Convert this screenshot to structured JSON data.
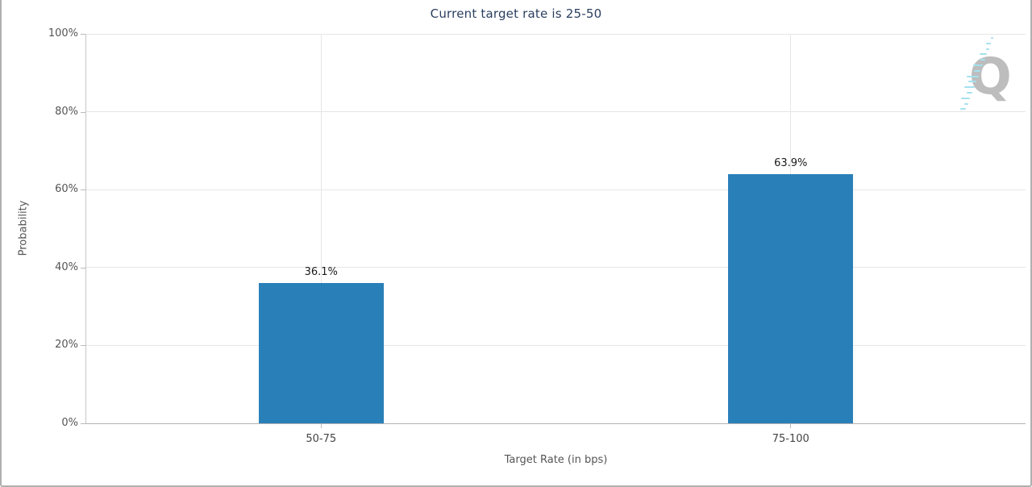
{
  "chart": {
    "title": "Current target rate is 25-50",
    "xlabel": "Target Rate (in bps)",
    "ylabel": "Probability"
  },
  "chart_data": {
    "type": "bar",
    "title": "Current target rate is 25-50",
    "categories": [
      "50-75",
      "75-100"
    ],
    "values": [
      36.1,
      63.9
    ],
    "value_labels": [
      "36.1%",
      "63.9%"
    ],
    "xlabel": "Target Rate (in bps)",
    "ylabel": "Probability",
    "ylim": [
      0,
      100
    ],
    "yticks": [
      0,
      20,
      40,
      60,
      80,
      100
    ],
    "ytick_labels": [
      "0%",
      "20%",
      "40%",
      "60%",
      "80%",
      "100%"
    ],
    "grid": true,
    "legend": "none",
    "bar_color": "#2980b9"
  },
  "logo": {
    "letter": "Q",
    "letter_color": "#bdbdbd",
    "dash_color": "#a5e1ee"
  },
  "style": {
    "title_color": "#2a3f5f",
    "grid_color": "#e6e6e6",
    "axis_color": "#b3b3b3",
    "tick_label_color": "#555555",
    "data_label_color": "#1a1a1a",
    "border_color": "#b0b0b0"
  }
}
